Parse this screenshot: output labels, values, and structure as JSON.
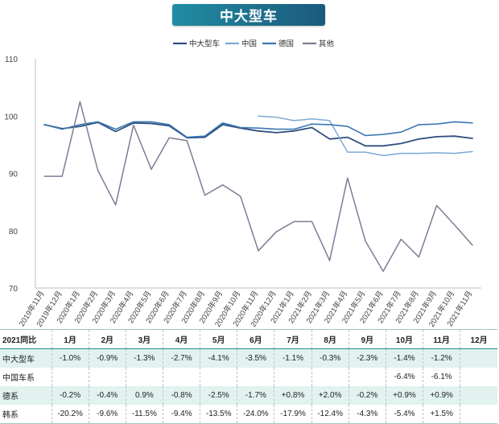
{
  "chart_data": {
    "type": "line",
    "title": "中大型车",
    "categories": [
      "2019年11月",
      "2019年12月",
      "2020年1月",
      "2020年2月",
      "2020年3月",
      "2020年4月",
      "2020年5月",
      "2020年6月",
      "2020年7月",
      "2020年8月",
      "2020年9月",
      "2020年10月",
      "2020年11月",
      "2020年12月",
      "2021年1月",
      "2021年2月",
      "2021年3月",
      "2021年4月",
      "2021年5月",
      "2021年6月",
      "2021年7月",
      "2021年8月",
      "2021年9月",
      "2021年10月",
      "2021年11月"
    ],
    "ylim": [
      70,
      110
    ],
    "yticks": [
      70,
      80,
      90,
      100,
      110
    ],
    "legend_position": "top",
    "grid": false,
    "series": [
      {
        "name": "中大型车",
        "color": "#2f4f80",
        "width": 1.8,
        "values": [
          98.5,
          97.8,
          98.2,
          98.9,
          97.3,
          98.8,
          98.7,
          98.3,
          96.2,
          96.3,
          98.5,
          97.9,
          97.4,
          97.1,
          97.4,
          98.0,
          96.0,
          96.3,
          94.8,
          94.8,
          95.2,
          96.0,
          96.4,
          96.5,
          96.1
        ]
      },
      {
        "name": "中国",
        "color": "#7da9d6",
        "width": 1.5,
        "values": [
          null,
          null,
          null,
          null,
          null,
          null,
          null,
          null,
          null,
          null,
          null,
          null,
          100.0,
          99.8,
          99.2,
          99.5,
          99.2,
          93.7,
          93.7,
          93.1,
          93.5,
          93.5,
          93.6,
          93.5,
          93.8
        ]
      },
      {
        "name": "德国",
        "color": "#3b77b2",
        "width": 1.6,
        "values": [
          98.5,
          97.7,
          98.5,
          99.0,
          97.7,
          99.0,
          99.0,
          98.5,
          96.3,
          96.5,
          98.8,
          98.0,
          97.9,
          97.7,
          97.7,
          98.6,
          98.5,
          98.2,
          96.6,
          96.8,
          97.2,
          98.5,
          98.6,
          99.0,
          98.8
        ]
      },
      {
        "name": "其他",
        "color": "#7c7c96",
        "width": 1.5,
        "values": [
          89.5,
          89.5,
          102.5,
          90.5,
          84.5,
          98.4,
          90.7,
          96.2,
          95.7,
          86.2,
          88.0,
          86.0,
          76.5,
          79.8,
          81.6,
          81.6,
          74.8,
          89.2,
          78.2,
          72.9,
          78.5,
          75.4,
          84.4,
          81.0,
          77.5
        ]
      }
    ]
  },
  "table": {
    "header": [
      "2021同比",
      "1月",
      "2月",
      "3月",
      "4月",
      "5月",
      "6月",
      "7月",
      "8月",
      "9月",
      "10月",
      "11月",
      "12月"
    ],
    "rows": [
      [
        "中大型车",
        "-1.0%",
        "-0.9%",
        "-1.3%",
        "-2.7%",
        "-4.1%",
        "-3.5%",
        "-1.1%",
        "-0.3%",
        "-2.3%",
        "-1.4%",
        "-1.2%",
        ""
      ],
      [
        "中国车系",
        "",
        "",
        "",
        "",
        "",
        "",
        "",
        "",
        "",
        "-6.4%",
        "-6.1%",
        ""
      ],
      [
        "德系",
        "-0.2%",
        "-0.4%",
        "0.9%",
        "-0.8%",
        "-2.5%",
        "-1.7%",
        "+0.8%",
        "+2.0%",
        "-0.2%",
        "+0.9%",
        "+0.9%",
        ""
      ],
      [
        "韩系",
        "-20.2%",
        "-9.6%",
        "-11.5%",
        "-9.4%",
        "-13.5%",
        "-24.0%",
        "-17.9%",
        "-12.4%",
        "-4.3%",
        "-5.4%",
        "+1.5%",
        ""
      ]
    ]
  }
}
